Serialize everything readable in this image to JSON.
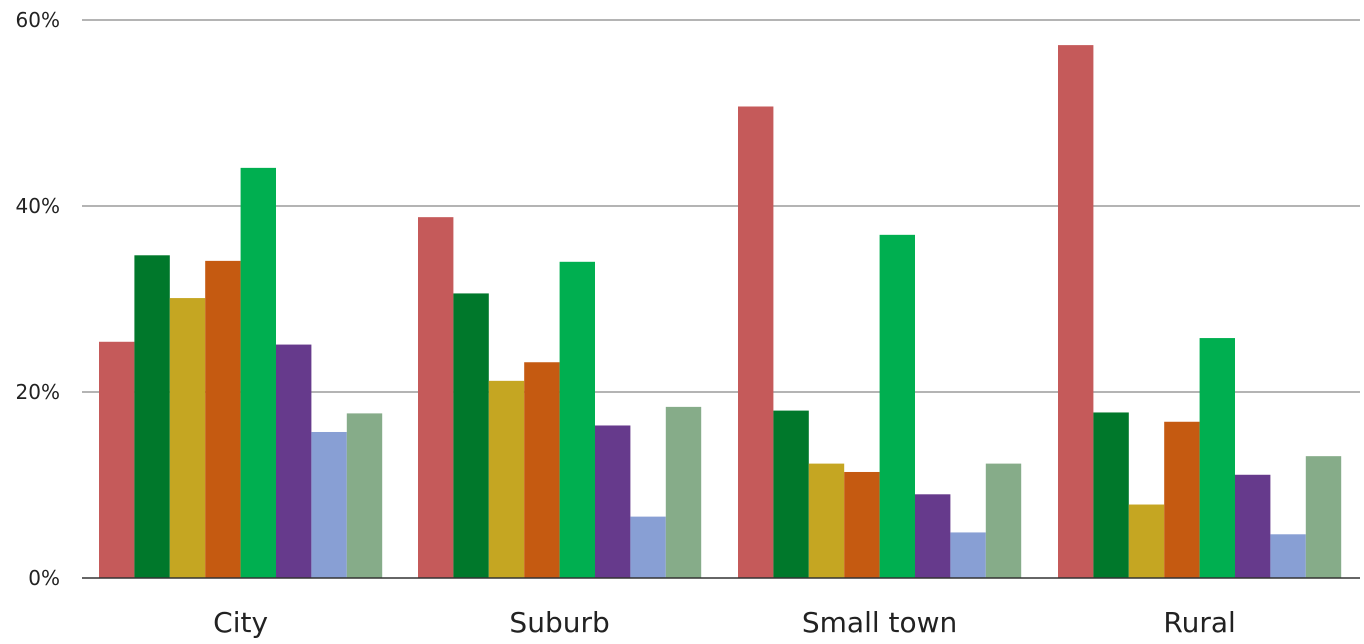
{
  "chart_data": {
    "type": "bar",
    "title": "",
    "xlabel": "",
    "ylabel": "",
    "ylim": [
      0,
      60
    ],
    "y_ticks": [
      {
        "value": 0,
        "label": "0%"
      },
      {
        "value": 20,
        "label": "20%"
      },
      {
        "value": 40,
        "label": "40%"
      },
      {
        "value": 60,
        "label": "60%"
      }
    ],
    "grid": true,
    "legend": "none",
    "categories": [
      "City",
      "Suburb",
      "Small town",
      "Rural"
    ],
    "series": [
      {
        "color": "#c55a5a",
        "values": [
          25.4,
          38.8,
          50.7,
          57.3
        ]
      },
      {
        "color": "#00782b",
        "values": [
          34.7,
          30.6,
          18.0,
          17.8
        ]
      },
      {
        "color": "#c5a622",
        "values": [
          30.1,
          21.2,
          12.3,
          7.9
        ]
      },
      {
        "color": "#c55a11",
        "values": [
          34.1,
          23.2,
          11.4,
          16.8
        ]
      },
      {
        "color": "#00af50",
        "values": [
          44.1,
          34.0,
          36.9,
          25.8
        ]
      },
      {
        "color": "#663a8c",
        "values": [
          25.1,
          16.4,
          9.0,
          11.1
        ]
      },
      {
        "color": "#889fd4",
        "values": [
          15.7,
          6.6,
          4.9,
          4.7
        ]
      },
      {
        "color": "#86ac89",
        "values": [
          17.7,
          18.4,
          12.3,
          13.1
        ]
      }
    ]
  }
}
